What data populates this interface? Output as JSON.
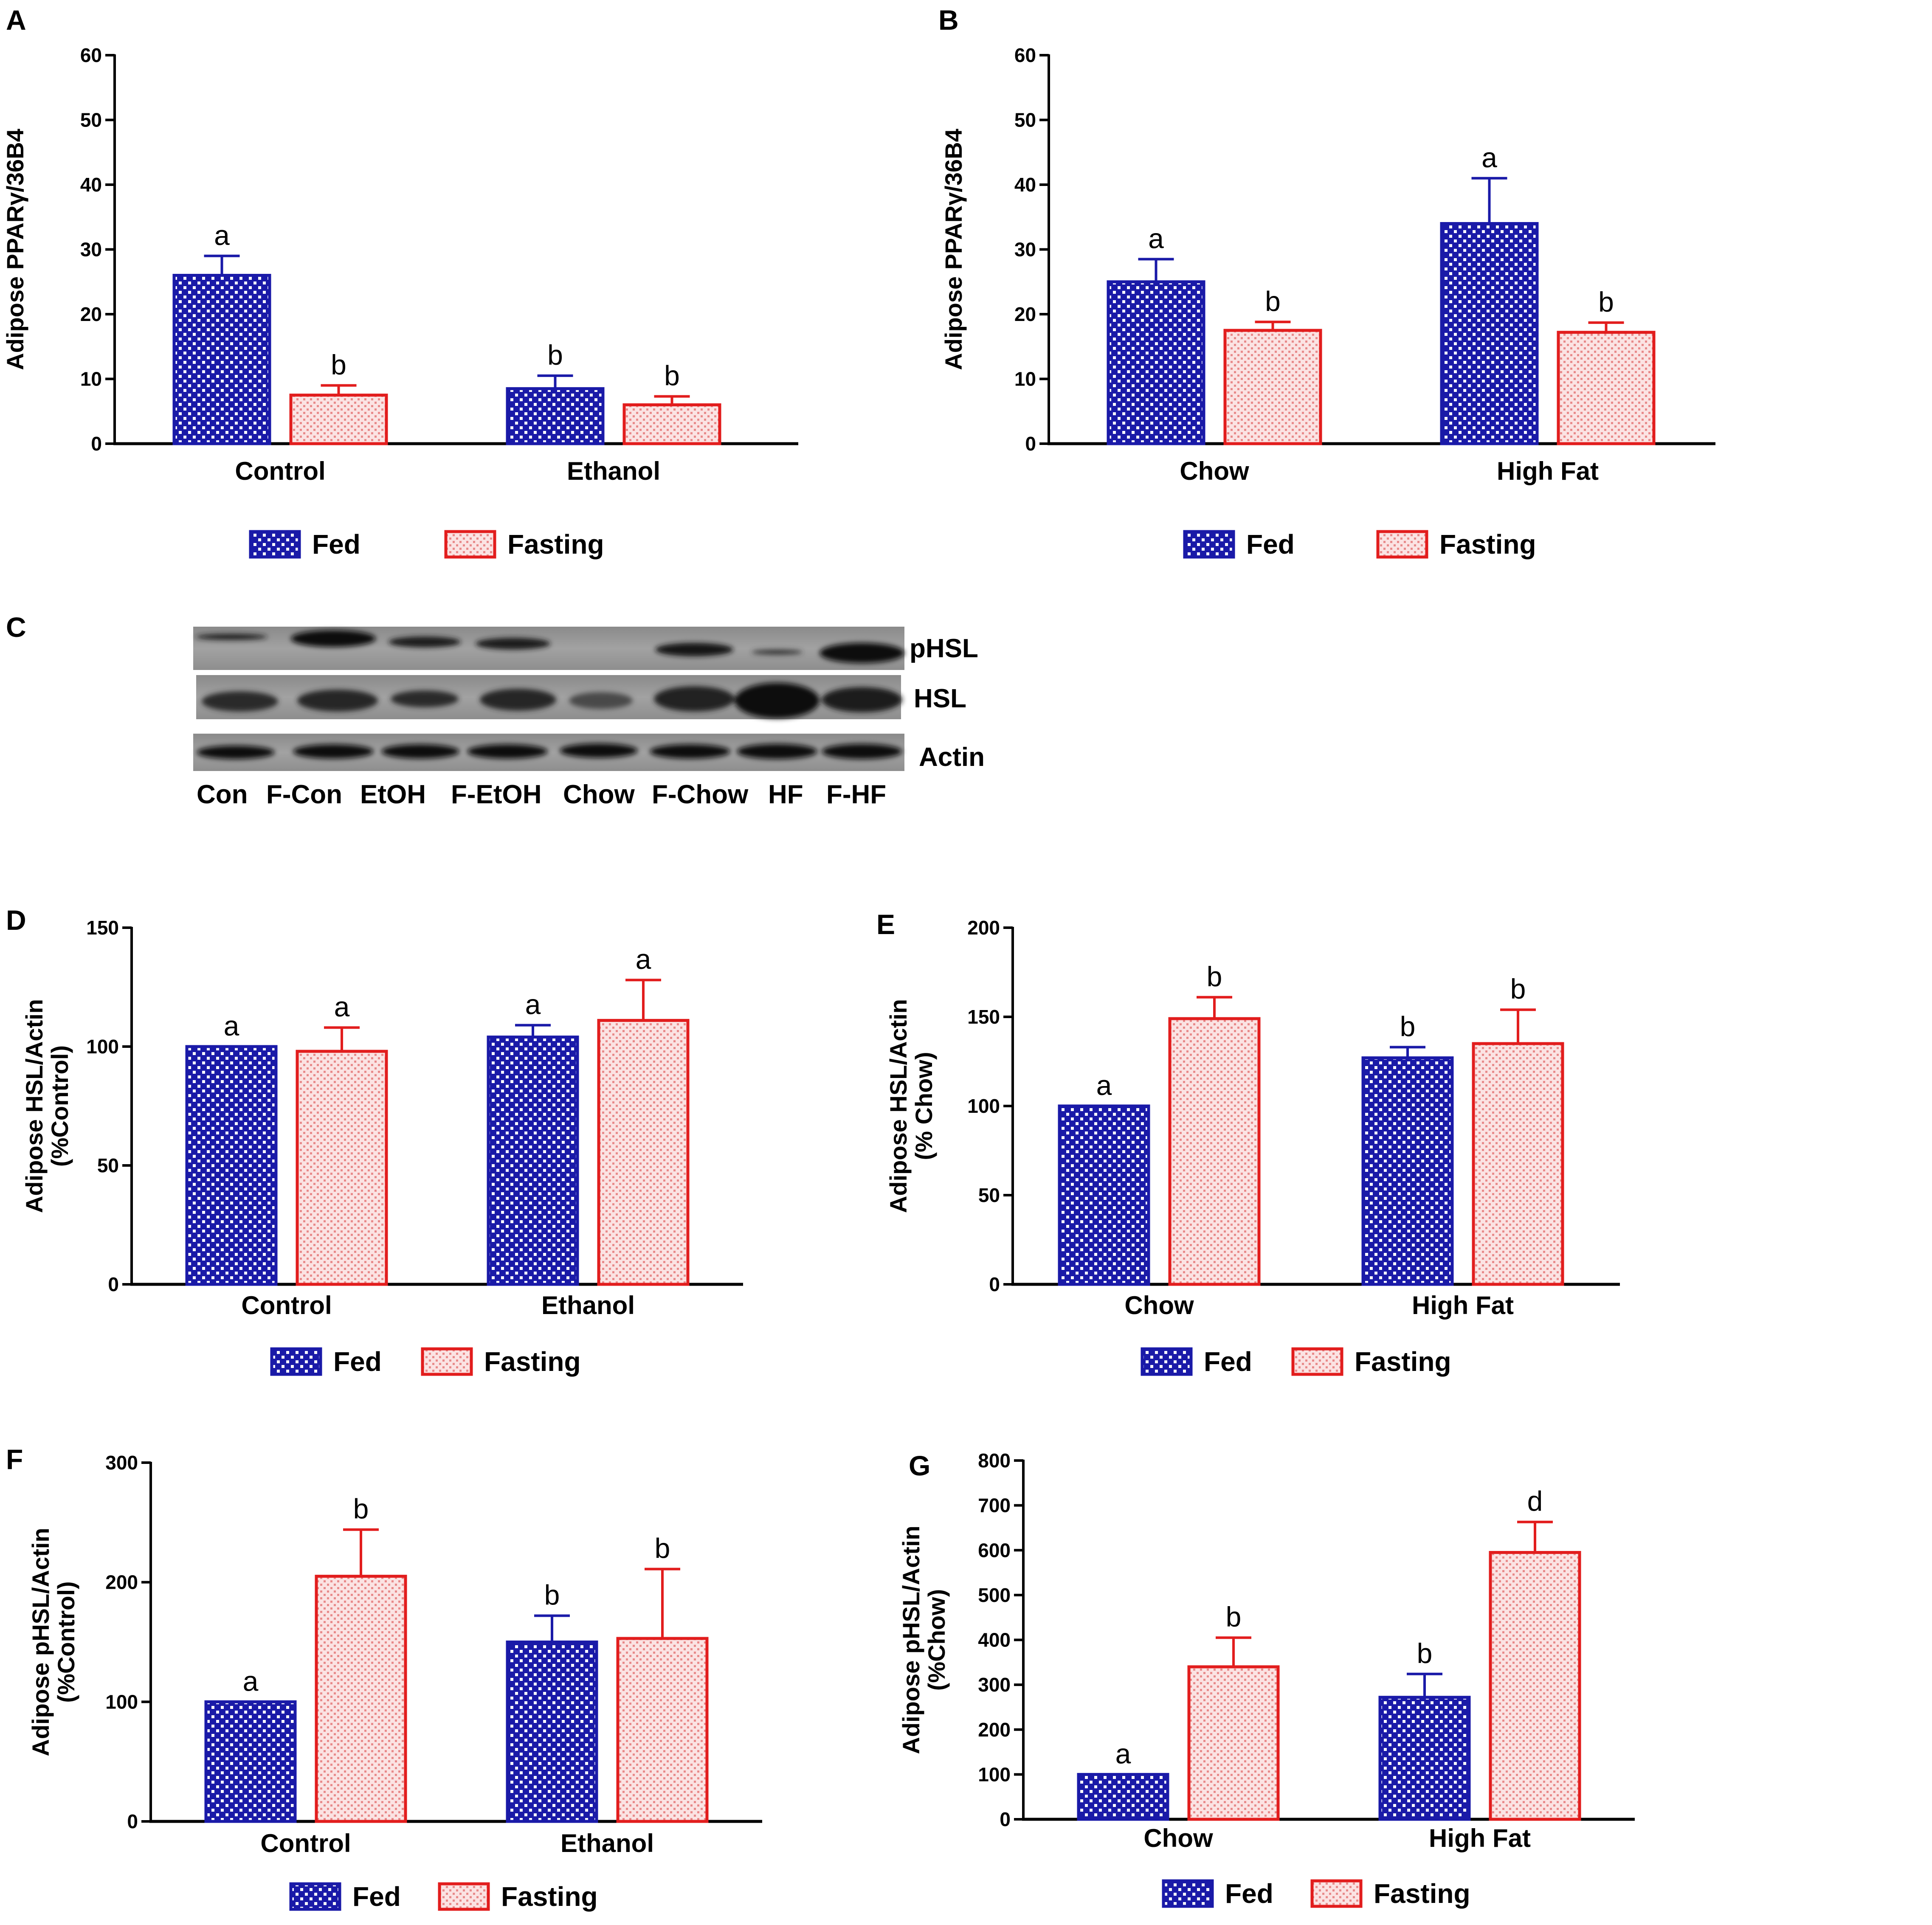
{
  "colors": {
    "fed": "#1a1aa8",
    "fasting": "#e21d1d",
    "axis": "#000000"
  },
  "legend": {
    "fed": "Fed",
    "fasting": "Fasting"
  },
  "blot": {
    "panel_label": "C",
    "lane_labels": [
      "Con",
      "F-Con",
      "EtOH",
      "F-EtOH",
      "Chow",
      "F-Chow",
      "HF",
      "F-HF"
    ],
    "row_labels": [
      "pHSL",
      "HSL",
      "Actin"
    ]
  },
  "chart_data": [
    {
      "panel": "A",
      "type": "bar",
      "title": "",
      "ylabel_lines": [
        "Adipose PPARγ/36B4"
      ],
      "xlabel": "",
      "categories": [
        "Control",
        "Ethanol"
      ],
      "series": [
        {
          "name": "Fed",
          "values": [
            26,
            8.5
          ],
          "errors": [
            3,
            2
          ]
        },
        {
          "name": "Fasting",
          "values": [
            7.5,
            6
          ],
          "errors": [
            1.5,
            1.3
          ]
        }
      ],
      "letters": [
        [
          "a",
          "b"
        ],
        [
          "b",
          "b"
        ]
      ],
      "ylim": [
        0,
        60
      ],
      "yticks": [
        0,
        10,
        20,
        30,
        40,
        50,
        60
      ],
      "legend": "bottom"
    },
    {
      "panel": "B",
      "type": "bar",
      "title": "",
      "ylabel_lines": [
        "Adipose PPARγ/36B4"
      ],
      "xlabel": "",
      "categories": [
        "Chow",
        "High Fat"
      ],
      "series": [
        {
          "name": "Fed",
          "values": [
            25,
            34
          ],
          "errors": [
            3.5,
            7
          ]
        },
        {
          "name": "Fasting",
          "values": [
            17.5,
            17.2
          ],
          "errors": [
            1.3,
            1.5
          ]
        }
      ],
      "letters": [
        [
          "a",
          "a"
        ],
        [
          "b",
          "b"
        ]
      ],
      "ylim": [
        0,
        60
      ],
      "yticks": [
        0,
        10,
        20,
        30,
        40,
        50,
        60
      ],
      "legend": "bottom"
    },
    {
      "panel": "D",
      "type": "bar",
      "title": "",
      "ylabel_lines": [
        "Adipose HSL/Actin",
        "(%Control)"
      ],
      "xlabel": "",
      "categories": [
        "Control",
        "Ethanol"
      ],
      "series": [
        {
          "name": "Fed",
          "values": [
            100,
            104
          ],
          "errors": [
            0,
            5
          ]
        },
        {
          "name": "Fasting",
          "values": [
            98,
            111
          ],
          "errors": [
            10,
            17
          ]
        }
      ],
      "letters": [
        [
          "a",
          "a"
        ],
        [
          "a",
          "a"
        ]
      ],
      "ylim": [
        0,
        150
      ],
      "yticks": [
        0,
        50,
        100,
        150
      ],
      "legend": "bottom"
    },
    {
      "panel": "E",
      "type": "bar",
      "title": "",
      "ylabel_lines": [
        "Adipose HSL/Actin",
        "(% Chow)"
      ],
      "xlabel": "",
      "categories": [
        "Chow",
        "High Fat"
      ],
      "series": [
        {
          "name": "Fed",
          "values": [
            100,
            127
          ],
          "errors": [
            0,
            6
          ]
        },
        {
          "name": "Fasting",
          "values": [
            149,
            135
          ],
          "errors": [
            12,
            19
          ]
        }
      ],
      "letters": [
        [
          "a",
          "b"
        ],
        [
          "b",
          "b"
        ]
      ],
      "ylim": [
        0,
        200
      ],
      "yticks": [
        0,
        50,
        100,
        150,
        200
      ],
      "legend": "bottom"
    },
    {
      "panel": "F",
      "type": "bar",
      "title": "",
      "ylabel_lines": [
        "Adipose pHSL/Actin",
        "(%Control)"
      ],
      "xlabel": "",
      "categories": [
        "Control",
        "Ethanol"
      ],
      "series": [
        {
          "name": "Fed",
          "values": [
            100,
            150
          ],
          "errors": [
            0,
            22
          ]
        },
        {
          "name": "Fasting",
          "values": [
            205,
            153
          ],
          "errors": [
            39,
            58
          ]
        }
      ],
      "letters": [
        [
          "a",
          "b"
        ],
        [
          "b",
          "b"
        ]
      ],
      "ylim": [
        0,
        300
      ],
      "yticks": [
        0,
        100,
        200,
        300
      ],
      "legend": "bottom"
    },
    {
      "panel": "G",
      "type": "bar",
      "title": "",
      "ylabel_lines": [
        "Adipose pHSL/Actin",
        "(%Chow)"
      ],
      "xlabel": "",
      "categories": [
        "Chow",
        "High Fat"
      ],
      "series": [
        {
          "name": "Fed",
          "values": [
            100,
            272
          ],
          "errors": [
            0,
            52
          ]
        },
        {
          "name": "Fasting",
          "values": [
            340,
            595
          ],
          "errors": [
            65,
            68
          ]
        }
      ],
      "letters": [
        [
          "a",
          "b"
        ],
        [
          "b",
          "d"
        ]
      ],
      "ylim": [
        0,
        800
      ],
      "yticks": [
        0,
        100,
        200,
        300,
        400,
        500,
        600,
        700,
        800
      ],
      "legend": "bottom"
    }
  ]
}
